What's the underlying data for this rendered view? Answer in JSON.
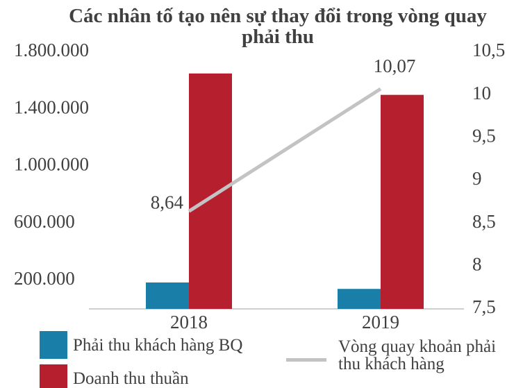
{
  "chart_data": {
    "type": "bar_line",
    "title": "Các nhân tố tạo nên sự thay đổi trong vòng quay phải thu",
    "categories": [
      "2018",
      "2019"
    ],
    "series": [
      {
        "name": "Phải thu khách hàng BQ",
        "color": "#1a7fa8",
        "values": [
          185000,
          140000
        ]
      },
      {
        "name": "Doanh thu thuần",
        "color": "#b61f2e",
        "values": [
          1650000,
          1500000
        ]
      },
      {
        "name": "Vòng quay khoản phải thu khách hàng",
        "color": "#c3c3c3",
        "axis": "y2",
        "values": [
          8.64,
          10.07
        ],
        "value_labels": [
          "8,64",
          "10,07"
        ]
      }
    ],
    "ylim": [
      0,
      1800000
    ],
    "yticks": [
      {
        "value": 200000,
        "label": "200.000"
      },
      {
        "value": 600000,
        "label": "600.000"
      },
      {
        "value": 1000000,
        "label": "1.000.000"
      },
      {
        "value": 1400000,
        "label": "1.400.000"
      },
      {
        "value": 1800000,
        "label": "1.800.000"
      }
    ],
    "y2lim": [
      7.5,
      10.5
    ],
    "y2ticks": [
      {
        "value": 7.5,
        "label": "7,5"
      },
      8,
      {
        "value": 8.5,
        "label": "8,5"
      },
      9,
      {
        "value": 9.5,
        "label": "9,5"
      },
      10,
      {
        "value": 10.5,
        "label": "10,5"
      }
    ],
    "grid": false
  }
}
